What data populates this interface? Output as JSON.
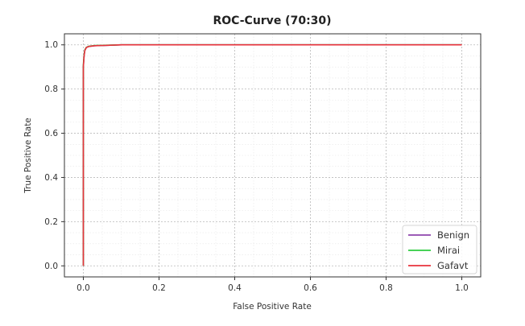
{
  "chart_data": {
    "type": "line",
    "title": "ROC-Curve (70:30)",
    "xlabel": "False Positive Rate",
    "ylabel": "True Positive Rate",
    "xlim": [
      -0.05,
      1.05
    ],
    "ylim": [
      -0.05,
      1.05
    ],
    "xticks": [
      "0.0",
      "0.2",
      "0.4",
      "0.6",
      "0.8",
      "1.0"
    ],
    "yticks": [
      "0.0",
      "0.2",
      "0.4",
      "0.6",
      "0.8",
      "1.0"
    ],
    "grid": true,
    "minor_grid": true,
    "legend_position": "bottom-right",
    "series": [
      {
        "name": "Benign",
        "color": "#8e44ad",
        "x": [
          0.0,
          0.0,
          0.002,
          0.004,
          0.008,
          0.015,
          0.03,
          0.1,
          1.0
        ],
        "y": [
          0.0,
          0.9,
          0.95,
          0.975,
          0.988,
          0.993,
          0.996,
          1.0,
          1.0
        ]
      },
      {
        "name": "Mirai",
        "color": "#2ecc40",
        "x": [
          0.0,
          0.0,
          0.002,
          0.004,
          0.008,
          0.015,
          0.03,
          0.1,
          1.0
        ],
        "y": [
          0.0,
          0.91,
          0.955,
          0.978,
          0.989,
          0.994,
          0.997,
          1.0,
          1.0
        ]
      },
      {
        "name": "Gafavt",
        "color": "#e8323c",
        "x": [
          0.0,
          0.0,
          0.002,
          0.004,
          0.008,
          0.015,
          0.03,
          0.1,
          1.0
        ],
        "y": [
          0.0,
          0.9,
          0.95,
          0.975,
          0.988,
          0.993,
          0.996,
          1.0,
          1.0
        ]
      }
    ]
  }
}
